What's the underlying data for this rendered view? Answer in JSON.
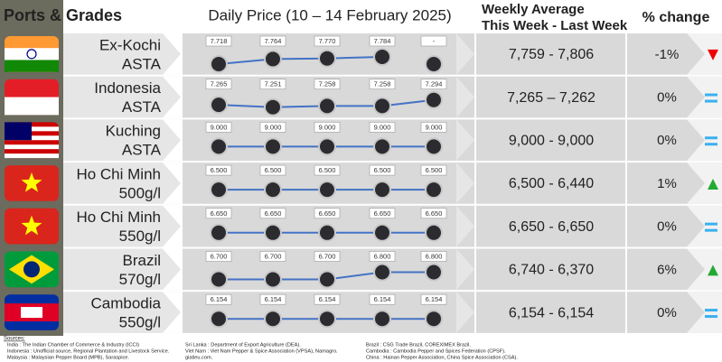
{
  "header": {
    "ports": "Ports & Grades",
    "daily": "Daily Price (10 – 14 February 2025)",
    "weekly_1": "Weekly Average",
    "weekly_2": "This Week - Last Week",
    "change": "% change"
  },
  "rows": [
    {
      "port": "Ex-Kochi",
      "grade": "ASTA",
      "prices": [
        {
          "value": 7718,
          "label": "7.718"
        },
        {
          "value": 7764,
          "label": "7.764"
        },
        {
          "value": 7770,
          "label": "7.770"
        },
        {
          "value": 7784,
          "label": "7.784"
        },
        {
          "value": null,
          "label": "-"
        }
      ],
      "weekly": "7,759 - 7,806",
      "change": "-1%",
      "trend": "down"
    },
    {
      "port": "Indonesia",
      "grade": "ASTA",
      "prices": [
        {
          "value": 7265,
          "label": "7.265"
        },
        {
          "value": 7251,
          "label": "7.251"
        },
        {
          "value": 7258,
          "label": "7.258"
        },
        {
          "value": 7258,
          "label": "7.258"
        },
        {
          "value": 7294,
          "label": "7.294"
        }
      ],
      "weekly": "7,265 – 7,262",
      "change": "0%",
      "trend": "equal"
    },
    {
      "port": "Kuching",
      "grade": "ASTA",
      "prices": [
        {
          "value": 9000,
          "label": "9.000"
        },
        {
          "value": 9000,
          "label": "9.000"
        },
        {
          "value": 9000,
          "label": "9.000"
        },
        {
          "value": 9000,
          "label": "9.000"
        },
        {
          "value": 9000,
          "label": "9.000"
        }
      ],
      "weekly": "9,000 - 9,000",
      "change": "0%",
      "trend": "equal"
    },
    {
      "port": "Ho Chi Minh",
      "grade": "500g/l",
      "prices": [
        {
          "value": 6500,
          "label": "6.500"
        },
        {
          "value": 6500,
          "label": "6.500"
        },
        {
          "value": 6500,
          "label": "6.500"
        },
        {
          "value": 6500,
          "label": "6.500"
        },
        {
          "value": 6500,
          "label": "6.500"
        }
      ],
      "weekly": "6,500 - 6,440",
      "change": "1%",
      "trend": "up"
    },
    {
      "port": "Ho Chi Minh",
      "grade": "550g/l",
      "prices": [
        {
          "value": 6650,
          "label": "6.650"
        },
        {
          "value": 6650,
          "label": "6.650"
        },
        {
          "value": 6650,
          "label": "6.650"
        },
        {
          "value": 6650,
          "label": "6.650"
        },
        {
          "value": 6650,
          "label": "6.650"
        }
      ],
      "weekly": "6,650 - 6,650",
      "change": "0%",
      "trend": "equal"
    },
    {
      "port": "Brazil",
      "grade": "570g/l",
      "prices": [
        {
          "value": 6700,
          "label": "6.700"
        },
        {
          "value": 6700,
          "label": "6.700"
        },
        {
          "value": 6700,
          "label": "6.700"
        },
        {
          "value": 6800,
          "label": "6.800"
        },
        {
          "value": 6800,
          "label": "6.800"
        }
      ],
      "weekly": "6,740 - 6,370",
      "change": "6%",
      "trend": "up"
    },
    {
      "port": "Cambodia",
      "grade": "550g/l",
      "prices": [
        {
          "value": 6154,
          "label": "6.154"
        },
        {
          "value": 6154,
          "label": "6.154"
        },
        {
          "value": 6154,
          "label": "6.154"
        },
        {
          "value": 6154,
          "label": "6.154"
        },
        {
          "value": 6154,
          "label": "6.154"
        }
      ],
      "weekly": "6,154 - 6,154",
      "change": "0%",
      "trend": "equal"
    }
  ],
  "sources": {
    "title": "Sources:",
    "columns": [
      [
        "India : The Indian Chamber of Commerce & Industry (ICCI)",
        "Indonesia : Unofficial source, Regional Plantation and Livestock Service.",
        "Malaysia : Malaysian Pepper Board (MPB), Saraspice."
      ],
      [
        "Sri Lanka : Department of Export Agriculture (DEA).",
        "Viet Nam : Viet Nam Pepper & Spice Association (VPSA), Namagro.",
        "giatieu.com."
      ],
      [
        "Brazil : CSG Trade Brazil, COREXIMEX Brazil.",
        "Cambodia : Cambodia Pepper and Spices Federation (CPSF).",
        "China : Hainan Pepper Association, China Spice Association (CSA)."
      ]
    ]
  }
}
